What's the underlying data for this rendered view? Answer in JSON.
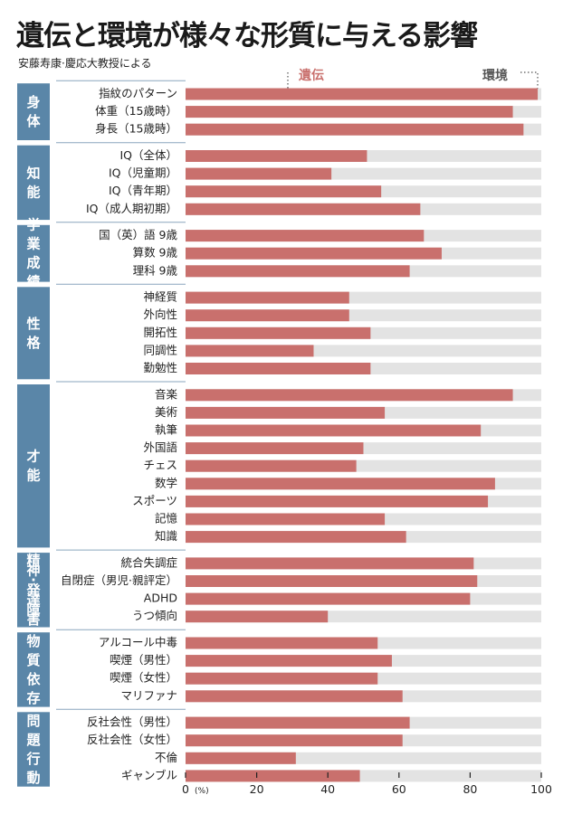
{
  "title": "遺伝と環境が様々な形質に与える影響",
  "subtitle": "安藤寿康·慶応大教授による",
  "colors": {
    "genetic": "#c9706d",
    "environment": "#e3e3e3",
    "category_bg": "#5a86a8"
  },
  "chart_data": {
    "type": "bar",
    "orientation": "horizontal",
    "stacked": true,
    "xlim": [
      0,
      100
    ],
    "xticks": [
      "0",
      "20",
      "40",
      "60",
      "80",
      "100"
    ],
    "unit": "(%)",
    "legend": [
      "遺伝",
      "環境"
    ],
    "groups": [
      {
        "name": "身体",
        "items": [
          {
            "label": "指紋のパターン",
            "value": 99
          },
          {
            "label": "体重（15歳時）",
            "value": 92
          },
          {
            "label": "身長（15歳時）",
            "value": 95
          }
        ]
      },
      {
        "name": "知能",
        "items": [
          {
            "label": "IQ（全体）",
            "value": 51
          },
          {
            "label": "IQ（児童期）",
            "value": 41
          },
          {
            "label": "IQ（青年期）",
            "value": 55
          },
          {
            "label": "IQ（成人期初期）",
            "value": 66
          }
        ]
      },
      {
        "name": "学業成績",
        "items": [
          {
            "label": "国（英）語 9歳",
            "value": 67
          },
          {
            "label": "算数 9歳",
            "value": 72
          },
          {
            "label": "理科 9歳",
            "value": 63
          }
        ]
      },
      {
        "name": "性格",
        "items": [
          {
            "label": "神経質",
            "value": 46
          },
          {
            "label": "外向性",
            "value": 46
          },
          {
            "label": "開拓性",
            "value": 52
          },
          {
            "label": "同調性",
            "value": 36
          },
          {
            "label": "勤勉性",
            "value": 52
          }
        ]
      },
      {
        "name": "才能",
        "items": [
          {
            "label": "音楽",
            "value": 92
          },
          {
            "label": "美術",
            "value": 56
          },
          {
            "label": "執筆",
            "value": 83
          },
          {
            "label": "外国語",
            "value": 50
          },
          {
            "label": "チェス",
            "value": 48
          },
          {
            "label": "数学",
            "value": 87
          },
          {
            "label": "スポーツ",
            "value": 85
          },
          {
            "label": "記憶",
            "value": 56
          },
          {
            "label": "知識",
            "value": 62
          }
        ]
      },
      {
        "name": "精神·発達障害",
        "items": [
          {
            "label": "統合失調症",
            "value": 81
          },
          {
            "label": "自閉症（男児·親評定）",
            "value": 82
          },
          {
            "label": "ADHD",
            "value": 80
          },
          {
            "label": "うつ傾向",
            "value": 40
          }
        ]
      },
      {
        "name": "物質依存",
        "items": [
          {
            "label": "アルコール中毒",
            "value": 54
          },
          {
            "label": "喫煙（男性）",
            "value": 58
          },
          {
            "label": "喫煙（女性）",
            "value": 54
          },
          {
            "label": "マリファナ",
            "value": 61
          }
        ]
      },
      {
        "name": "問題行動",
        "items": [
          {
            "label": "反社会性（男性）",
            "value": 63
          },
          {
            "label": "反社会性（女性）",
            "value": 61
          },
          {
            "label": "不倫",
            "value": 31
          },
          {
            "label": "ギャンブル",
            "value": 49
          }
        ]
      }
    ]
  }
}
